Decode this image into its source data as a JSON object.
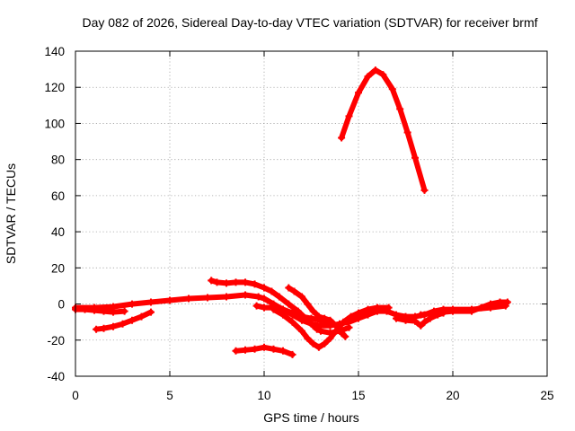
{
  "chart_data": {
    "type": "scatter",
    "title": "Day 082 of 2026, Sidereal Day-to-day VTEC variation (SDTVAR) for receiver brmf",
    "xlabel": "GPS time / hours",
    "ylabel": "SDTVAR / TECUs",
    "xlim": [
      0,
      25
    ],
    "ylim": [
      -40,
      140
    ],
    "xticks": [
      "0",
      "5",
      "10",
      "15",
      "20",
      "25"
    ],
    "yticks": [
      "-40",
      "-20",
      "0",
      "20",
      "40",
      "60",
      "80",
      "100",
      "120",
      "140"
    ],
    "grid": true,
    "marker_color": "#ff0000",
    "series": [
      {
        "name": "arc-main",
        "points": [
          [
            0.0,
            -2
          ],
          [
            1,
            -2
          ],
          [
            2,
            -1.5
          ],
          [
            3,
            0
          ],
          [
            4,
            1
          ],
          [
            5,
            2
          ],
          [
            6,
            3
          ],
          [
            7,
            3.5
          ],
          [
            8,
            4
          ],
          [
            9,
            5
          ],
          [
            9.7,
            4
          ],
          [
            10,
            3
          ],
          [
            10.5,
            0
          ],
          [
            11,
            -3
          ],
          [
            11.5,
            -6
          ],
          [
            12,
            -9
          ],
          [
            12.5,
            -11
          ],
          [
            13,
            -12
          ],
          [
            13.5,
            -12
          ],
          [
            14,
            -11
          ],
          [
            14.5,
            -10
          ],
          [
            15,
            -8
          ],
          [
            15.5,
            -6
          ],
          [
            16,
            -4
          ],
          [
            16.5,
            -4
          ],
          [
            17,
            -6
          ],
          [
            17.5,
            -7
          ],
          [
            18,
            -7
          ],
          [
            18.5,
            -6
          ],
          [
            19,
            -4
          ],
          [
            19.5,
            -3
          ],
          [
            20,
            -3
          ],
          [
            21,
            -3
          ],
          [
            22,
            -2
          ],
          [
            22.8,
            -1
          ]
        ]
      },
      {
        "name": "arc-left-low",
        "points": [
          [
            0,
            -3
          ],
          [
            0.5,
            -3
          ],
          [
            1,
            -3.5
          ],
          [
            1.5,
            -4
          ],
          [
            2,
            -4.5
          ],
          [
            2.6,
            -4
          ]
        ]
      },
      {
        "name": "arc-early",
        "points": [
          [
            1.1,
            -14
          ],
          [
            1.5,
            -13.5
          ],
          [
            2,
            -12.5
          ],
          [
            2.5,
            -11
          ],
          [
            3,
            -9
          ],
          [
            3.5,
            -7
          ],
          [
            4,
            -4.5
          ]
        ]
      },
      {
        "name": "arc-mid-high",
        "points": [
          [
            7.2,
            13
          ],
          [
            7.5,
            12
          ],
          [
            8,
            11.5
          ],
          [
            8.5,
            12
          ],
          [
            9,
            12
          ],
          [
            9.5,
            11
          ],
          [
            10,
            9
          ],
          [
            10.4,
            7
          ],
          [
            10.8,
            4
          ],
          [
            11.3,
            0
          ],
          [
            11.8,
            -4
          ],
          [
            12.2,
            -8
          ],
          [
            12.6,
            -12
          ],
          [
            12.8,
            -14
          ],
          [
            13,
            -15
          ],
          [
            13.5,
            -16
          ],
          [
            14,
            -15
          ],
          [
            14.5,
            -13
          ]
        ]
      },
      {
        "name": "arc-dip-deep",
        "points": [
          [
            10.5,
            -3
          ],
          [
            11,
            -6
          ],
          [
            11.5,
            -10
          ],
          [
            12,
            -15
          ],
          [
            12.3,
            -19
          ],
          [
            12.6,
            -22
          ],
          [
            12.9,
            -24
          ],
          [
            13.2,
            -22
          ],
          [
            13.5,
            -19
          ],
          [
            13.8,
            -15
          ],
          [
            14.2,
            -10
          ],
          [
            14.6,
            -7
          ],
          [
            15,
            -5
          ],
          [
            15.5,
            -3
          ],
          [
            16,
            -2
          ],
          [
            16.6,
            -2
          ]
        ]
      },
      {
        "name": "arc-dip-shallow",
        "points": [
          [
            9.6,
            -1
          ],
          [
            10,
            -2
          ],
          [
            10.5,
            -2
          ],
          [
            11,
            -3
          ],
          [
            11.5,
            -5
          ],
          [
            12,
            -7
          ],
          [
            12.5,
            -8
          ],
          [
            13,
            -9
          ],
          [
            13.5,
            -10
          ]
        ]
      },
      {
        "name": "arc-right",
        "points": [
          [
            11.3,
            9
          ],
          [
            11.6,
            7
          ],
          [
            12,
            4
          ],
          [
            12.3,
            0
          ],
          [
            12.6,
            -4
          ],
          [
            12.9,
            -7
          ],
          [
            13.2,
            -8
          ],
          [
            13.5,
            -9
          ],
          [
            13.8,
            -12
          ],
          [
            14.1,
            -16
          ],
          [
            14.3,
            -18
          ]
        ]
      },
      {
        "name": "arc-neg25",
        "points": [
          [
            8.5,
            -26
          ],
          [
            9,
            -25.5
          ],
          [
            9.5,
            -25
          ],
          [
            10,
            -24
          ],
          [
            10.5,
            -25
          ],
          [
            11,
            -26
          ],
          [
            11.5,
            -28
          ]
        ]
      },
      {
        "name": "arc-high",
        "points": [
          [
            14.1,
            92
          ],
          [
            14.5,
            104
          ],
          [
            15,
            117
          ],
          [
            15.5,
            126
          ],
          [
            15.9,
            129.5
          ],
          [
            16.3,
            127
          ],
          [
            16.8,
            119
          ],
          [
            17.2,
            108
          ],
          [
            17.6,
            95
          ],
          [
            18,
            81
          ],
          [
            18.5,
            63
          ]
        ]
      },
      {
        "name": "arc-late-dip",
        "points": [
          [
            17,
            -8
          ],
          [
            17.5,
            -9
          ],
          [
            18,
            -9.5
          ],
          [
            18.3,
            -12
          ],
          [
            18.5,
            -10
          ],
          [
            18.8,
            -8
          ],
          [
            19.2,
            -6
          ],
          [
            19.5,
            -5
          ]
        ]
      },
      {
        "name": "arc-late",
        "points": [
          [
            18.3,
            -6
          ],
          [
            19,
            -5
          ],
          [
            20,
            -4
          ],
          [
            21,
            -4
          ],
          [
            21.5,
            -2
          ],
          [
            22,
            0
          ],
          [
            22.5,
            1
          ],
          [
            22.9,
            1
          ]
        ]
      }
    ]
  }
}
